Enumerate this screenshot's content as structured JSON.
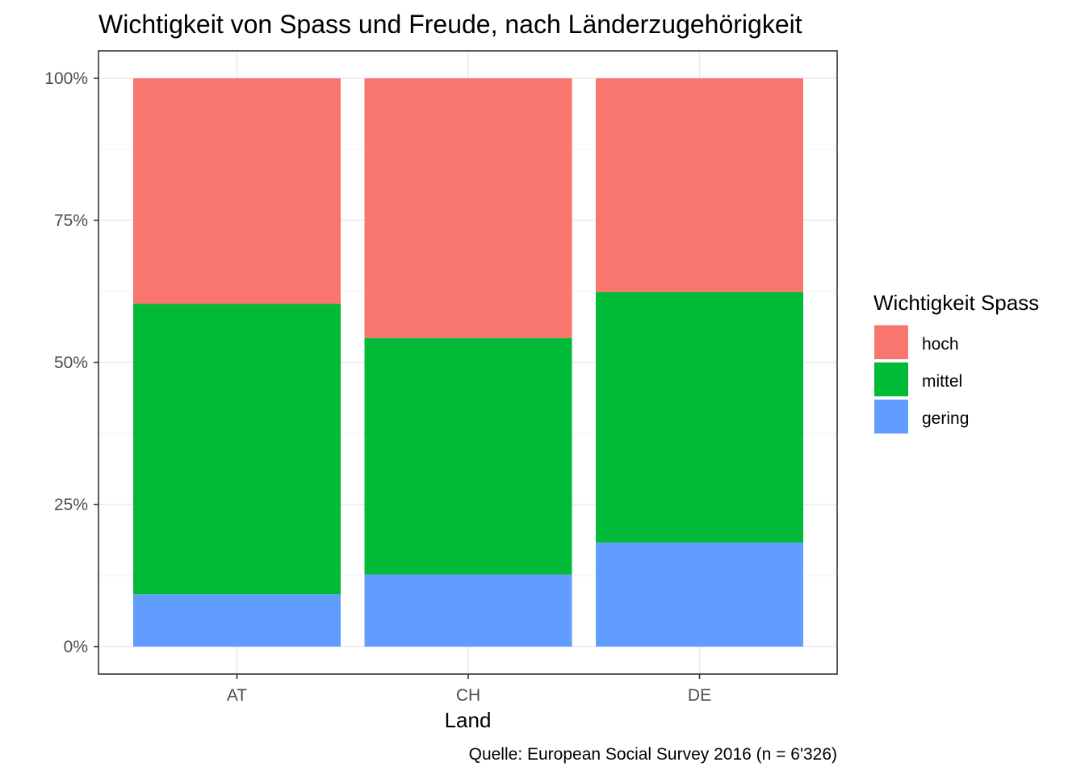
{
  "chart_data": {
    "type": "bar",
    "stacked": true,
    "percent": true,
    "title": "Wichtigkeit von Spass und Freude, nach Länderzugehörigkeit",
    "xlabel": "Land",
    "ylabel": "",
    "caption": "Quelle: European Social Survey 2016 (n = 6'326)",
    "categories": [
      "AT",
      "CH",
      "DE"
    ],
    "ylim": [
      0,
      1
    ],
    "yticks": [
      0,
      0.25,
      0.5,
      0.75,
      1
    ],
    "ytick_labels": [
      "0%",
      "25%",
      "50%",
      "75%",
      "100%"
    ],
    "grid": true,
    "legend": {
      "title": "Wichtigkeit Spass",
      "position": "right"
    },
    "series": [
      {
        "name": "hoch",
        "color": "#F8766D",
        "values": [
          0.397,
          0.457,
          0.376
        ]
      },
      {
        "name": "mittel",
        "color": "#00BA38",
        "values": [
          0.511,
          0.416,
          0.441
        ]
      },
      {
        "name": "gering",
        "color": "#619CFF",
        "values": [
          0.092,
          0.127,
          0.183
        ]
      }
    ]
  }
}
